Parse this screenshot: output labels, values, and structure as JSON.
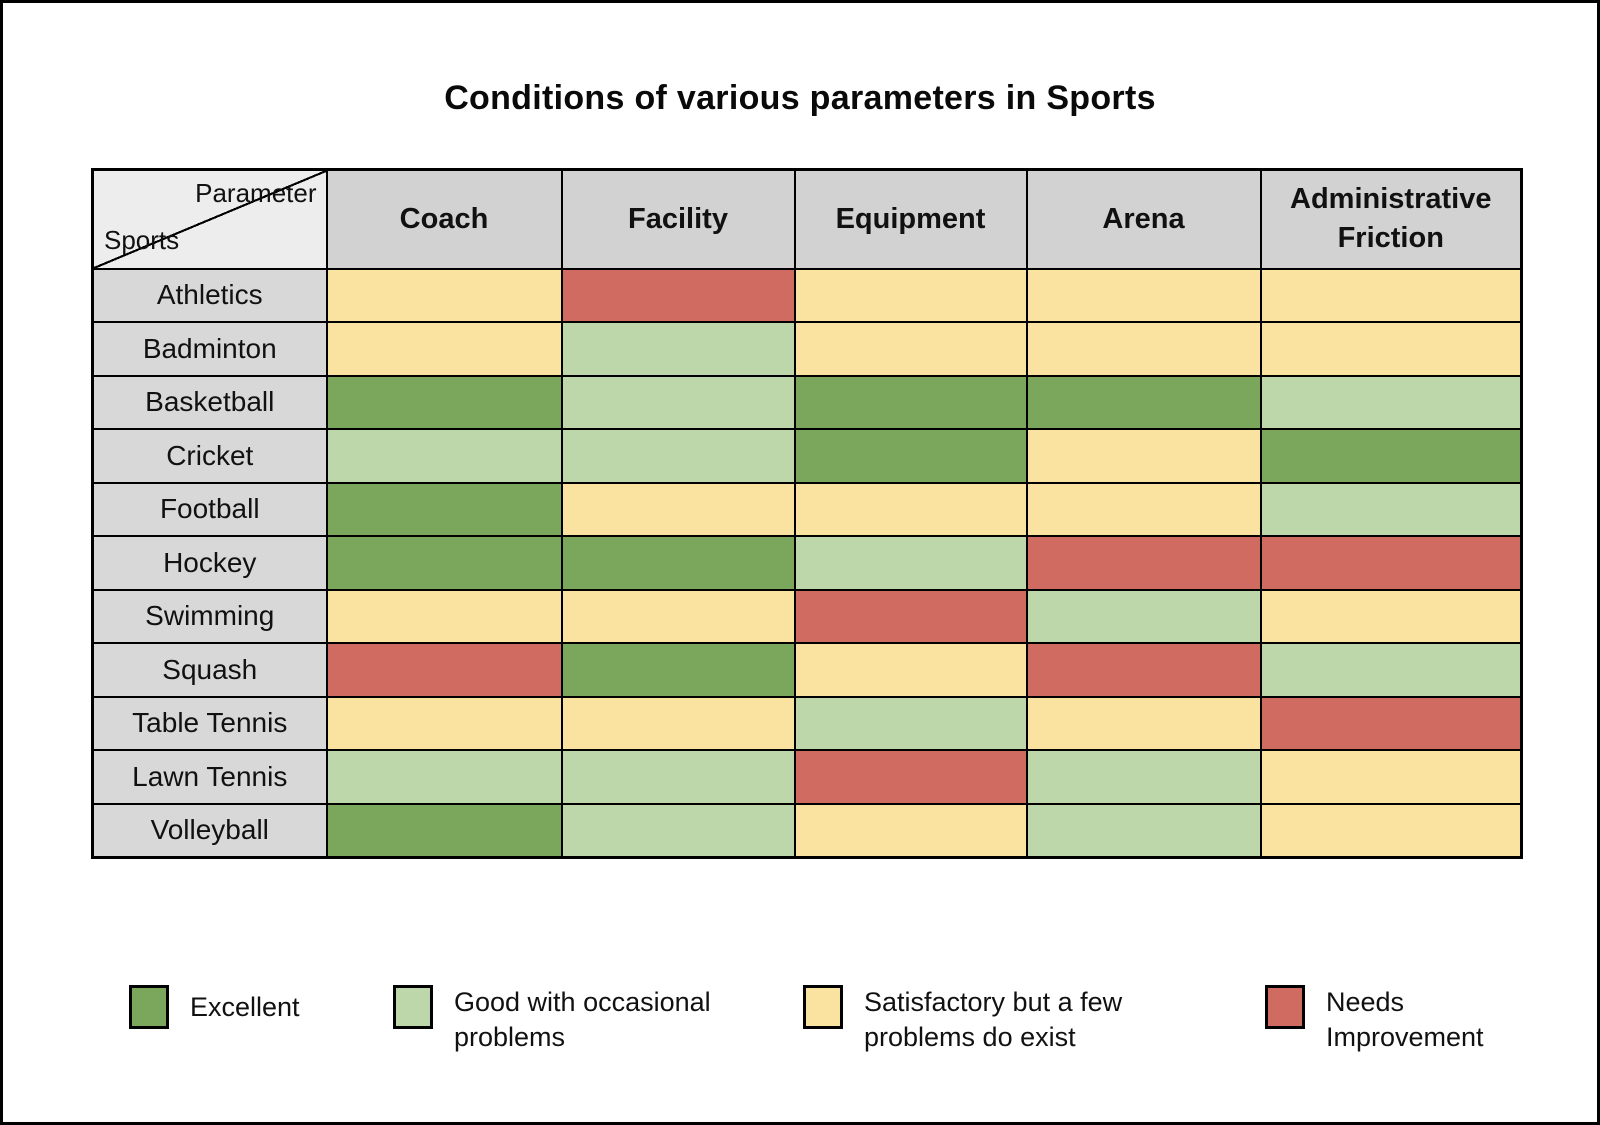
{
  "title": "Conditions of various parameters in Sports",
  "corner": {
    "parameter_label": "Parameter",
    "sports_label": "Sports"
  },
  "chart_data": {
    "type": "heatmap",
    "title": "Conditions of various parameters in Sports",
    "columns": [
      "Coach",
      "Facility",
      "Equipment",
      "Arena",
      "Administrative Friction"
    ],
    "sports": [
      "Athletics",
      "Badminton",
      "Basketball",
      "Cricket",
      "Football",
      "Hockey",
      "Swimming",
      "Squash",
      "Table Tennis",
      "Lawn Tennis",
      "Volleyball"
    ],
    "ratings": [
      [
        "satisfactory",
        "needs-improvement",
        "satisfactory",
        "satisfactory",
        "satisfactory"
      ],
      [
        "satisfactory",
        "good",
        "satisfactory",
        "satisfactory",
        "satisfactory"
      ],
      [
        "excellent",
        "good",
        "excellent",
        "excellent",
        "good"
      ],
      [
        "good",
        "good",
        "excellent",
        "satisfactory",
        "excellent"
      ],
      [
        "excellent",
        "satisfactory",
        "satisfactory",
        "satisfactory",
        "good"
      ],
      [
        "excellent",
        "excellent",
        "good",
        "needs-improvement",
        "needs-improvement"
      ],
      [
        "satisfactory",
        "satisfactory",
        "needs-improvement",
        "good",
        "satisfactory"
      ],
      [
        "needs-improvement",
        "excellent",
        "satisfactory",
        "needs-improvement",
        "good"
      ],
      [
        "satisfactory",
        "satisfactory",
        "good",
        "satisfactory",
        "needs-improvement"
      ],
      [
        "good",
        "good",
        "needs-improvement",
        "good",
        "satisfactory"
      ],
      [
        "excellent",
        "good",
        "satisfactory",
        "good",
        "satisfactory"
      ]
    ],
    "rating_scale": {
      "excellent": "Excellent",
      "good": "Good with occasional problems",
      "satisfactory": "Satisfactory but a few problems do exist",
      "needs-improvement": "Needs Improvement"
    },
    "legend_position": "bottom"
  },
  "colors": {
    "excellent": "#7aa75c",
    "good": "#bdd7aa",
    "satisfactory": "#fae3a1",
    "needs-improvement": "#d06b62",
    "header_bg": "#d2d2d2",
    "sport_bg": "#d8d8d8",
    "corner_bg": "#ededed",
    "border": "#000000"
  },
  "legend": [
    {
      "key": "excellent",
      "label": "Excellent"
    },
    {
      "key": "good",
      "label": "Good with occasional\nproblems"
    },
    {
      "key": "satisfactory",
      "label": "Satisfactory but a few\nproblems do exist"
    },
    {
      "key": "needs-improvement",
      "label": "Needs\nImprovement"
    }
  ]
}
